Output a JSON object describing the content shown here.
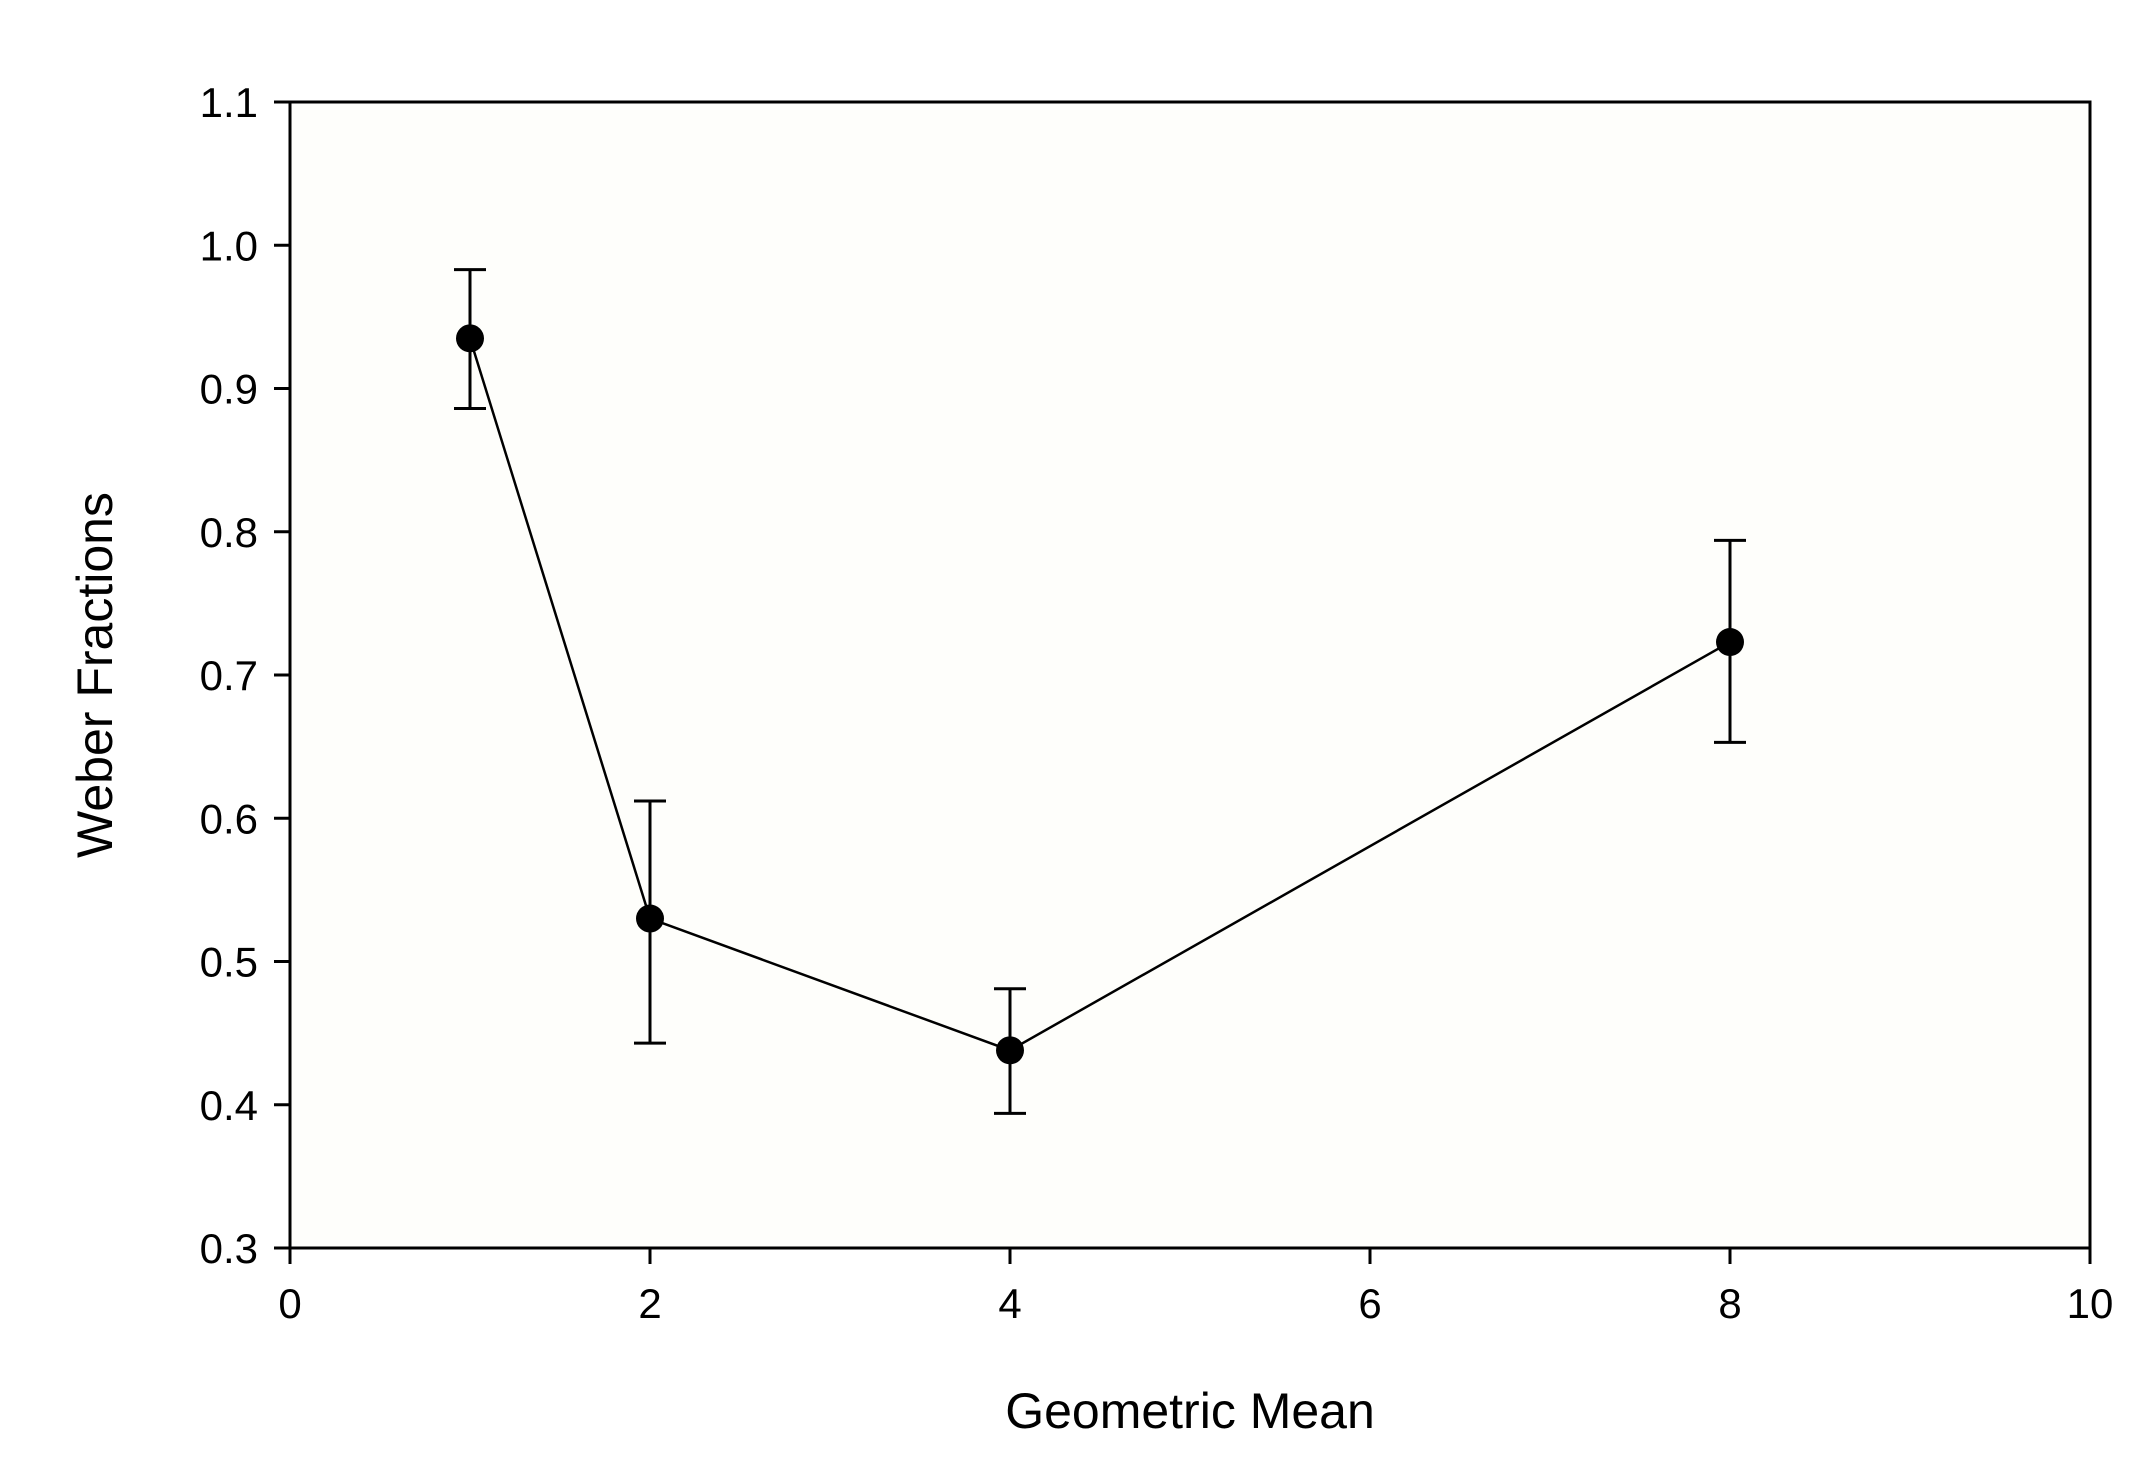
{
  "chart_data": {
    "type": "scatter",
    "title": "",
    "xlabel": "Geometric Mean",
    "ylabel": "Weber Fractions",
    "xlim": [
      0,
      10
    ],
    "ylim": [
      0.3,
      1.1
    ],
    "x_ticks": [
      "0",
      "2",
      "4",
      "6",
      "8",
      "10"
    ],
    "y_ticks": [
      "0.3",
      "0.4",
      "0.5",
      "0.6",
      "0.7",
      "0.8",
      "0.9",
      "1.0",
      "1.1"
    ],
    "grid": false,
    "legend": false,
    "connected": true,
    "series": [
      {
        "x": [
          1,
          2,
          4,
          8
        ],
        "y": [
          0.935,
          0.53,
          0.438,
          0.723
        ],
        "error_upper": [
          0.983,
          0.612,
          0.481,
          0.794
        ],
        "error_lower": [
          0.886,
          0.443,
          0.394,
          0.653
        ]
      }
    ],
    "colors": {
      "background": "#fefefb",
      "line": "#000000",
      "marker": "#000000"
    }
  }
}
